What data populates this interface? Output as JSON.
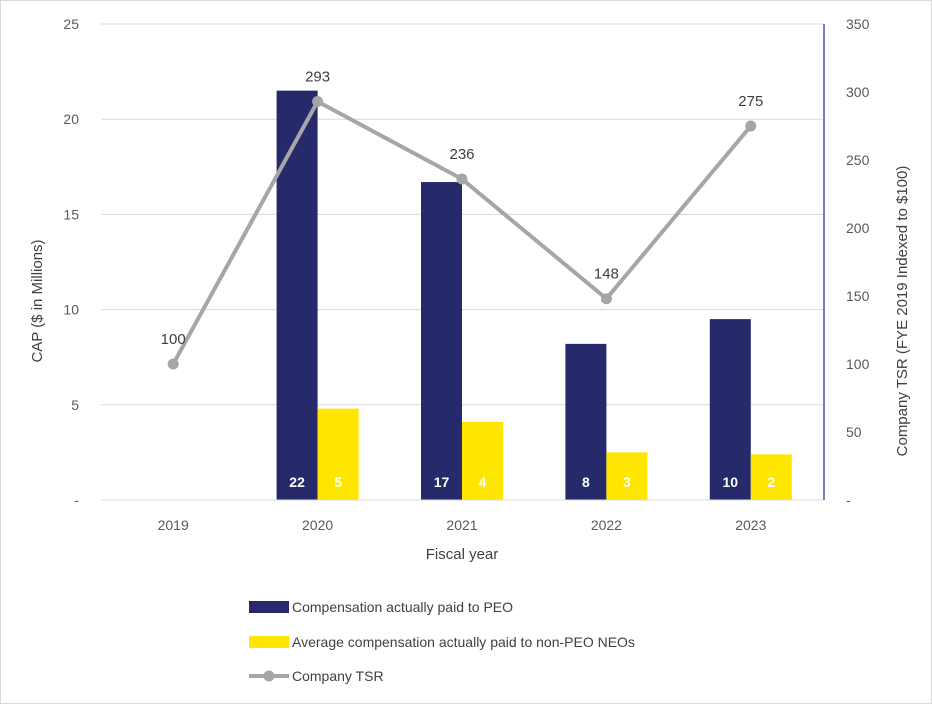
{
  "chart_data": {
    "type": "bar",
    "categories": [
      "2019",
      "2020",
      "2021",
      "2022",
      "2023"
    ],
    "series": [
      {
        "name": "Compensation actually paid to PEO",
        "type": "bar",
        "axis": "left",
        "color": "#262a6b",
        "values": [
          0,
          21.5,
          16.7,
          8.2,
          9.5
        ],
        "labels": [
          "",
          "22",
          "17",
          "8",
          "10"
        ],
        "label_color": "#ffffff"
      },
      {
        "name": "Average compensation actually paid to non-PEO NEOs",
        "type": "bar",
        "axis": "left",
        "color": "#ffe600",
        "values": [
          0,
          4.8,
          4.1,
          2.5,
          2.4
        ],
        "labels": [
          "",
          "5",
          "4",
          "3",
          "2"
        ],
        "label_color": "#404040"
      },
      {
        "name": "Company TSR",
        "type": "line",
        "axis": "right",
        "color": "#a6a6a6",
        "values": [
          100,
          293,
          236,
          148,
          275
        ],
        "labels": [
          "100",
          "293",
          "236",
          "148",
          "275"
        ]
      }
    ],
    "xlabel": "Fiscal year",
    "ylabel": "CAP  ($ in Millions)",
    "y2label": "Company TSR (FYE 2019 Indexed to $100)",
    "ylim": [
      0,
      25
    ],
    "y2lim": [
      0,
      350
    ],
    "yticks": [
      "-",
      "5",
      "10",
      "15",
      "20",
      "25"
    ],
    "y2ticks": [
      "-",
      "50",
      "100",
      "150",
      "200",
      "250",
      "300",
      "350"
    ],
    "grid": true,
    "legend_position": "bottom"
  }
}
